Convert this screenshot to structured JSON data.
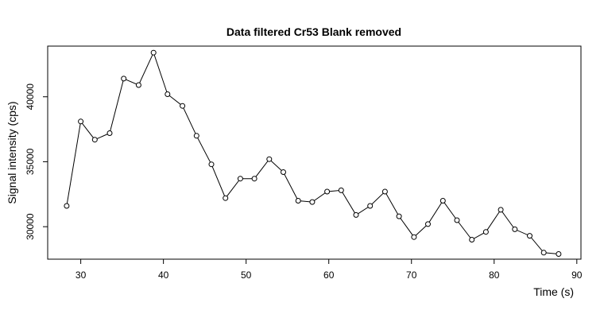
{
  "chart_data": {
    "type": "line",
    "title": "Data filtered Cr53 Blank removed",
    "xlabel": "Time (s)",
    "ylabel": "Signal intensity (cps)",
    "xlim": [
      26,
      90.5
    ],
    "ylim": [
      27500,
      43900
    ],
    "xticks": [
      30,
      40,
      50,
      60,
      70,
      80,
      90
    ],
    "yticks": [
      30000,
      35000,
      40000
    ],
    "grid": false,
    "series": [
      {
        "x": [
          28.3,
          30.0,
          31.7,
          33.5,
          35.2,
          37.0,
          38.8,
          40.5,
          42.3,
          44.0,
          45.8,
          47.5,
          49.3,
          51.0,
          52.8,
          54.5,
          56.3,
          58.0,
          59.8,
          61.5,
          63.3,
          65.0,
          66.8,
          68.5,
          70.3,
          72.0,
          73.8,
          75.5,
          77.3,
          79.0,
          80.8,
          82.5,
          84.3,
          86.0,
          87.8
        ],
        "values": [
          31600,
          38100,
          36700,
          37200,
          41400,
          40900,
          43400,
          40200,
          39300,
          37000,
          34800,
          32200,
          33700,
          33700,
          35200,
          34200,
          32000,
          31900,
          32700,
          32800,
          30900,
          31600,
          32700,
          30800,
          29200,
          30200,
          32000,
          30500,
          29000,
          29600,
          31300,
          29800,
          29300,
          28000,
          27900
        ]
      }
    ]
  }
}
